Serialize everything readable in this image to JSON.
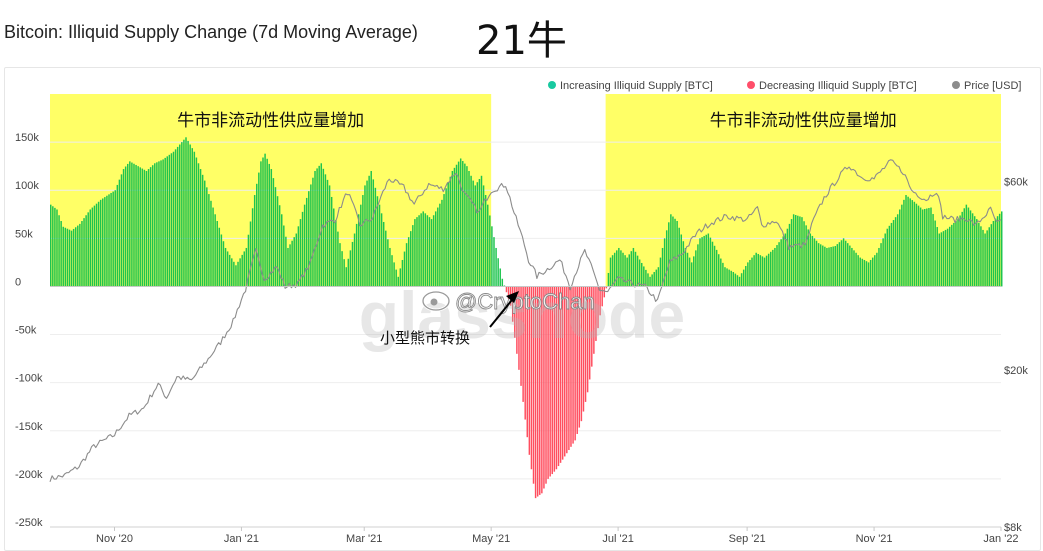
{
  "header": {
    "title": "Bitcoin: Illiquid Supply Change (7d Moving Average)",
    "tag": "21牛"
  },
  "watermark": "glassnode",
  "weibo_handle": "@CryptoChan",
  "colors": {
    "increase": "#1ec44f",
    "decrease": "#ff4e5f",
    "price": "#8c8c8c",
    "highlight": "#ffff66",
    "legend_increase": "#19c9a0",
    "legend_decrease": "#ff4e6a",
    "legend_price": "#8c8c8c"
  },
  "chart_data": {
    "type": "bar",
    "title": "Bitcoin: Illiquid Supply Change (7d Moving Average)",
    "legend": {
      "placement": "top-right",
      "items": [
        "Increasing Illiquid Supply [BTC]",
        "Decreasing Illiquid Supply [BTC]",
        "Price [USD]"
      ]
    },
    "x_range": [
      "2020-10-01",
      "2022-01-01"
    ],
    "x_ticks": [
      {
        "date": "2020-11-01",
        "label": "Nov '20"
      },
      {
        "date": "2021-01-01",
        "label": "Jan '21"
      },
      {
        "date": "2021-03-01",
        "label": "Mar '21"
      },
      {
        "date": "2021-05-01",
        "label": "May '21"
      },
      {
        "date": "2021-07-01",
        "label": "Jul '21"
      },
      {
        "date": "2021-09-01",
        "label": "Sep '21"
      },
      {
        "date": "2021-11-01",
        "label": "Nov '21"
      },
      {
        "date": "2022-01-01",
        "label": "Jan '22"
      }
    ],
    "y_left": {
      "range": [
        -250000,
        200000
      ],
      "ticks": [
        {
          "v": 150000,
          "label": "150k"
        },
        {
          "v": 100000,
          "label": "100k"
        },
        {
          "v": 50000,
          "label": "50k"
        },
        {
          "v": 0,
          "label": "0"
        },
        {
          "v": -50000,
          "label": "-50k"
        },
        {
          "v": -100000,
          "label": "-100k"
        },
        {
          "v": -150000,
          "label": "-150k"
        },
        {
          "v": -200000,
          "label": "-200k"
        },
        {
          "v": -250000,
          "label": "-250k"
        }
      ]
    },
    "y_right": {
      "scale": "log",
      "range": [
        8000,
        100000
      ],
      "ticks": [
        {
          "v": 60000,
          "label": "$60k"
        },
        {
          "v": 20000,
          "label": "$20k"
        },
        {
          "v": 8000,
          "label": "$8k"
        }
      ]
    },
    "illiquid_supply_change": [
      [
        "2020-10-01",
        85000
      ],
      [
        "2020-10-04",
        80000
      ],
      [
        "2020-10-07",
        62000
      ],
      [
        "2020-10-11",
        58000
      ],
      [
        "2020-10-15",
        65000
      ],
      [
        "2020-10-20",
        80000
      ],
      [
        "2020-10-25",
        90000
      ],
      [
        "2020-11-01",
        100000
      ],
      [
        "2020-11-05",
        122000
      ],
      [
        "2020-11-08",
        130000
      ],
      [
        "2020-11-12",
        125000
      ],
      [
        "2020-11-16",
        120000
      ],
      [
        "2020-11-20",
        128000
      ],
      [
        "2020-11-24",
        132000
      ],
      [
        "2020-11-29",
        140000
      ],
      [
        "2020-12-03",
        150000
      ],
      [
        "2020-12-05",
        155000
      ],
      [
        "2020-12-09",
        140000
      ],
      [
        "2020-12-14",
        110000
      ],
      [
        "2020-12-19",
        75000
      ],
      [
        "2020-12-24",
        40000
      ],
      [
        "2020-12-29",
        22000
      ],
      [
        "2021-01-03",
        40000
      ],
      [
        "2021-01-07",
        95000
      ],
      [
        "2021-01-10",
        130000
      ],
      [
        "2021-01-12",
        138000
      ],
      [
        "2021-01-15",
        122000
      ],
      [
        "2021-01-20",
        75000
      ],
      [
        "2021-01-23",
        40000
      ],
      [
        "2021-01-27",
        55000
      ],
      [
        "2021-01-31",
        85000
      ],
      [
        "2021-02-05",
        120000
      ],
      [
        "2021-02-08",
        128000
      ],
      [
        "2021-02-12",
        105000
      ],
      [
        "2021-02-17",
        45000
      ],
      [
        "2021-02-20",
        20000
      ],
      [
        "2021-02-24",
        55000
      ],
      [
        "2021-03-01",
        105000
      ],
      [
        "2021-03-04",
        120000
      ],
      [
        "2021-03-08",
        85000
      ],
      [
        "2021-03-13",
        40000
      ],
      [
        "2021-03-17",
        10000
      ],
      [
        "2021-03-21",
        45000
      ],
      [
        "2021-03-25",
        70000
      ],
      [
        "2021-03-29",
        78000
      ],
      [
        "2021-04-02",
        70000
      ],
      [
        "2021-04-07",
        90000
      ],
      [
        "2021-04-12",
        120000
      ],
      [
        "2021-04-16",
        133000
      ],
      [
        "2021-04-19",
        125000
      ],
      [
        "2021-04-23",
        105000
      ],
      [
        "2021-04-26",
        115000
      ],
      [
        "2021-04-29",
        85000
      ],
      [
        "2021-05-03",
        40000
      ],
      [
        "2021-05-06",
        8000
      ],
      [
        "2021-05-10",
        -20000
      ],
      [
        "2021-05-13",
        -70000
      ],
      [
        "2021-05-16",
        -120000
      ],
      [
        "2021-05-19",
        -175000
      ],
      [
        "2021-05-22",
        -220000
      ],
      [
        "2021-05-25",
        -215000
      ],
      [
        "2021-05-28",
        -200000
      ],
      [
        "2021-06-01",
        -190000
      ],
      [
        "2021-06-04",
        -180000
      ],
      [
        "2021-06-07",
        -170000
      ],
      [
        "2021-06-10",
        -160000
      ],
      [
        "2021-06-13",
        -140000
      ],
      [
        "2021-06-16",
        -110000
      ],
      [
        "2021-06-19",
        -70000
      ],
      [
        "2021-06-22",
        -30000
      ],
      [
        "2021-06-25",
        -2000
      ],
      [
        "2021-06-27",
        30000
      ],
      [
        "2021-07-01",
        40000
      ],
      [
        "2021-07-05",
        30000
      ],
      [
        "2021-07-08",
        40000
      ],
      [
        "2021-07-11",
        28000
      ],
      [
        "2021-07-16",
        10000
      ],
      [
        "2021-07-20",
        20000
      ],
      [
        "2021-07-23",
        50000
      ],
      [
        "2021-07-26",
        75000
      ],
      [
        "2021-07-29",
        68000
      ],
      [
        "2021-08-02",
        40000
      ],
      [
        "2021-08-05",
        25000
      ],
      [
        "2021-08-09",
        50000
      ],
      [
        "2021-08-13",
        55000
      ],
      [
        "2021-08-17",
        38000
      ],
      [
        "2021-08-21",
        20000
      ],
      [
        "2021-08-25",
        15000
      ],
      [
        "2021-08-28",
        10000
      ],
      [
        "2021-09-01",
        25000
      ],
      [
        "2021-09-05",
        35000
      ],
      [
        "2021-09-09",
        30000
      ],
      [
        "2021-09-14",
        40000
      ],
      [
        "2021-09-19",
        55000
      ],
      [
        "2021-09-23",
        75000
      ],
      [
        "2021-09-27",
        72000
      ],
      [
        "2021-10-01",
        55000
      ],
      [
        "2021-10-05",
        45000
      ],
      [
        "2021-10-09",
        40000
      ],
      [
        "2021-10-13",
        42000
      ],
      [
        "2021-10-17",
        50000
      ],
      [
        "2021-10-21",
        40000
      ],
      [
        "2021-10-25",
        30000
      ],
      [
        "2021-10-29",
        25000
      ],
      [
        "2021-11-02",
        35000
      ],
      [
        "2021-11-07",
        60000
      ],
      [
        "2021-11-12",
        75000
      ],
      [
        "2021-11-16",
        95000
      ],
      [
        "2021-11-20",
        88000
      ],
      [
        "2021-11-24",
        80000
      ],
      [
        "2021-11-28",
        82000
      ],
      [
        "2021-12-02",
        55000
      ],
      [
        "2021-12-06",
        60000
      ],
      [
        "2021-12-11",
        70000
      ],
      [
        "2021-12-15",
        85000
      ],
      [
        "2021-12-20",
        70000
      ],
      [
        "2021-12-24",
        55000
      ],
      [
        "2021-12-28",
        68000
      ],
      [
        "2022-01-01",
        78000
      ]
    ],
    "price_usd": [
      [
        "2020-10-01",
        10600
      ],
      [
        "2020-10-08",
        10800
      ],
      [
        "2020-10-15",
        11400
      ],
      [
        "2020-10-22",
        12800
      ],
      [
        "2020-11-01",
        13700
      ],
      [
        "2020-11-08",
        15300
      ],
      [
        "2020-11-15",
        16000
      ],
      [
        "2020-11-22",
        18400
      ],
      [
        "2020-11-26",
        17000
      ],
      [
        "2020-12-01",
        19200
      ],
      [
        "2020-12-08",
        18800
      ],
      [
        "2020-12-16",
        21300
      ],
      [
        "2020-12-22",
        23500
      ],
      [
        "2020-12-28",
        26500
      ],
      [
        "2021-01-03",
        32000
      ],
      [
        "2021-01-08",
        40000
      ],
      [
        "2021-01-12",
        34000
      ],
      [
        "2021-01-18",
        36500
      ],
      [
        "2021-01-22",
        32500
      ],
      [
        "2021-01-28",
        33000
      ],
      [
        "2021-02-03",
        37000
      ],
      [
        "2021-02-09",
        46500
      ],
      [
        "2021-02-15",
        48000
      ],
      [
        "2021-02-21",
        56500
      ],
      [
        "2021-02-27",
        46500
      ],
      [
        "2021-03-05",
        48500
      ],
      [
        "2021-03-13",
        61000
      ],
      [
        "2021-03-20",
        58000
      ],
      [
        "2021-03-25",
        52500
      ],
      [
        "2021-04-01",
        59000
      ],
      [
        "2021-04-08",
        57500
      ],
      [
        "2021-04-14",
        63500
      ],
      [
        "2021-04-18",
        56000
      ],
      [
        "2021-04-25",
        50000
      ],
      [
        "2021-05-01",
        57000
      ],
      [
        "2021-05-08",
        59000
      ],
      [
        "2021-05-12",
        50000
      ],
      [
        "2021-05-19",
        38000
      ],
      [
        "2021-05-23",
        34500
      ],
      [
        "2021-05-28",
        36000
      ],
      [
        "2021-06-03",
        38000
      ],
      [
        "2021-06-08",
        32500
      ],
      [
        "2021-06-15",
        40000
      ],
      [
        "2021-06-22",
        32000
      ],
      [
        "2021-06-26",
        31500
      ],
      [
        "2021-07-01",
        34000
      ],
      [
        "2021-07-08",
        33000
      ],
      [
        "2021-07-14",
        32500
      ],
      [
        "2021-07-20",
        29800
      ],
      [
        "2021-07-26",
        37500
      ],
      [
        "2021-08-01",
        39500
      ],
      [
        "2021-08-08",
        44500
      ],
      [
        "2021-08-14",
        47000
      ],
      [
        "2021-08-22",
        49000
      ],
      [
        "2021-09-01",
        48000
      ],
      [
        "2021-09-06",
        51500
      ],
      [
        "2021-09-08",
        46500
      ],
      [
        "2021-09-15",
        47800
      ],
      [
        "2021-09-21",
        41000
      ],
      [
        "2021-09-29",
        41500
      ],
      [
        "2021-10-03",
        48000
      ],
      [
        "2021-10-08",
        54500
      ],
      [
        "2021-10-15",
        61500
      ],
      [
        "2021-10-20",
        66000
      ],
      [
        "2021-10-26",
        61500
      ],
      [
        "2021-11-01",
        61000
      ],
      [
        "2021-11-09",
        67500
      ],
      [
        "2021-11-15",
        63500
      ],
      [
        "2021-11-19",
        57000
      ],
      [
        "2021-11-26",
        54000
      ],
      [
        "2021-12-01",
        57000
      ],
      [
        "2021-12-04",
        49000
      ],
      [
        "2021-12-10",
        48000
      ],
      [
        "2021-12-15",
        48500
      ],
      [
        "2021-12-20",
        46500
      ],
      [
        "2021-12-27",
        51000
      ],
      [
        "2021-12-30",
        47000
      ],
      [
        "2022-01-01",
        47500
      ]
    ],
    "highlight_regions": [
      {
        "from": "2020-10-01",
        "to": "2021-05-01",
        "label": "牛市非流动性供应量增加"
      },
      {
        "from": "2021-06-25",
        "to": "2022-01-01",
        "label": "牛市非流动性供应量增加"
      }
    ],
    "annotation": {
      "label": "小型熊市转换",
      "target_date": "2021-05-05",
      "target_value": 0
    }
  }
}
